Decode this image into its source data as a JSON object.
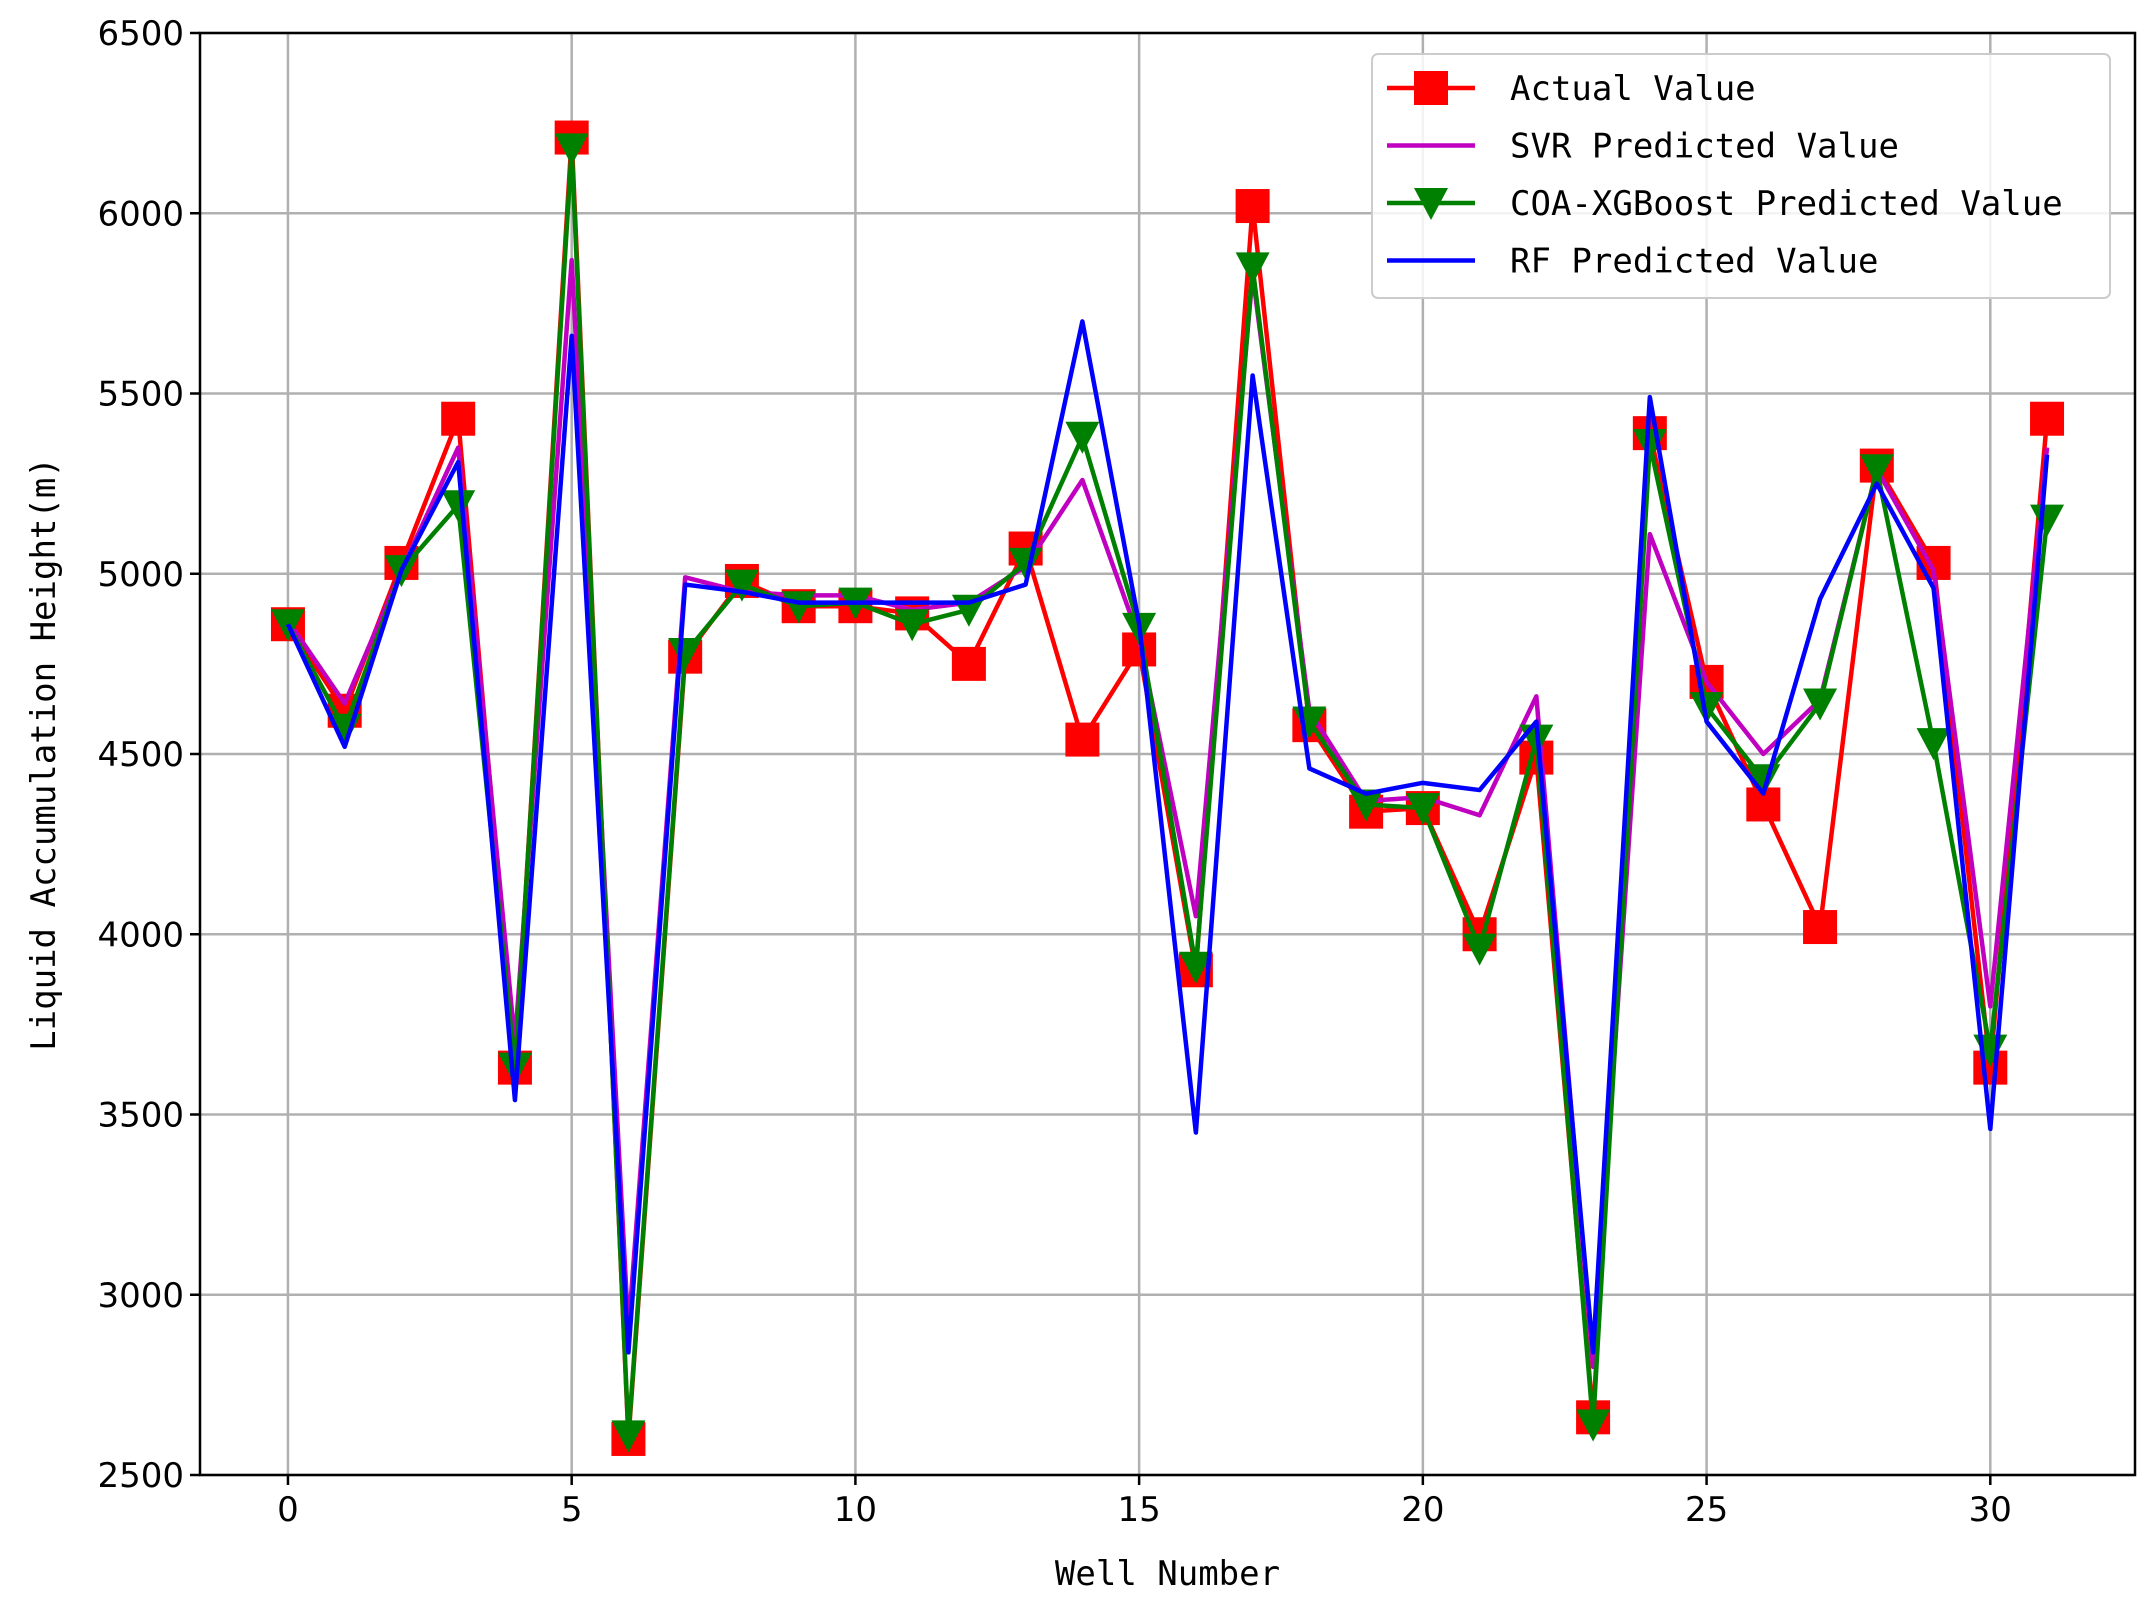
{
  "chart_data": {
    "type": "line",
    "title": "",
    "xlabel": "Well Number",
    "ylabel": "Liquid Accumulation Height(m)",
    "xlim": [
      -1.55,
      32.55
    ],
    "ylim": [
      2500,
      6500
    ],
    "xticks": [
      0,
      5,
      10,
      15,
      20,
      25,
      30
    ],
    "yticks": [
      2500,
      3000,
      3500,
      4000,
      4500,
      5000,
      5500,
      6000,
      6500
    ],
    "grid": true,
    "legend_position": "top-right",
    "x": [
      0,
      1,
      2,
      3,
      4,
      5,
      6,
      7,
      8,
      9,
      10,
      11,
      12,
      13,
      14,
      15,
      16,
      17,
      18,
      19,
      20,
      21,
      22,
      23,
      24,
      25,
      26,
      27,
      28,
      29,
      30,
      31
    ],
    "series": [
      {
        "name": "Actual Value",
        "color": "#ff0000",
        "marker": "square",
        "values": [
          4860,
          4620,
          5030,
          5430,
          3630,
          6210,
          2600,
          4770,
          4980,
          4910,
          4910,
          4890,
          4750,
          5070,
          4540,
          4790,
          3900,
          6020,
          4580,
          4340,
          4350,
          4000,
          4490,
          2660,
          5390,
          4700,
          4360,
          4020,
          5300,
          5030,
          3630,
          5430
        ]
      },
      {
        "name": "SVR Predicted Value",
        "color": "#c000c0",
        "marker": "none",
        "values": [
          4870,
          4640,
          5010,
          5350,
          3700,
          5870,
          2900,
          4990,
          4950,
          4940,
          4940,
          4900,
          4920,
          5020,
          5260,
          4820,
          4050,
          5830,
          4620,
          4370,
          4380,
          4330,
          4660,
          2800,
          5110,
          4700,
          4500,
          4650,
          5290,
          5010,
          3800,
          5350
        ]
      },
      {
        "name": "COA-XGBoost Predicted Value",
        "color": "#008000",
        "marker": "triangle-down",
        "values": [
          4860,
          4570,
          5010,
          5190,
          3630,
          6180,
          2610,
          4780,
          4970,
          4910,
          4920,
          4860,
          4900,
          5030,
          5380,
          4850,
          3910,
          5850,
          4590,
          4360,
          4350,
          3960,
          4540,
          2640,
          5360,
          4630,
          4430,
          4640,
          5290,
          4530,
          3680,
          5150
        ]
      },
      {
        "name": "RF Predicted Value",
        "color": "#0000ff",
        "marker": "none",
        "values": [
          4860,
          4520,
          5010,
          5310,
          3540,
          5660,
          2840,
          4970,
          4950,
          4920,
          4920,
          4920,
          4920,
          4970,
          5700,
          4860,
          3450,
          5550,
          4460,
          4390,
          4420,
          4400,
          4590,
          2840,
          5490,
          4590,
          4390,
          4930,
          5250,
          4960,
          3460,
          5330
        ]
      }
    ]
  }
}
